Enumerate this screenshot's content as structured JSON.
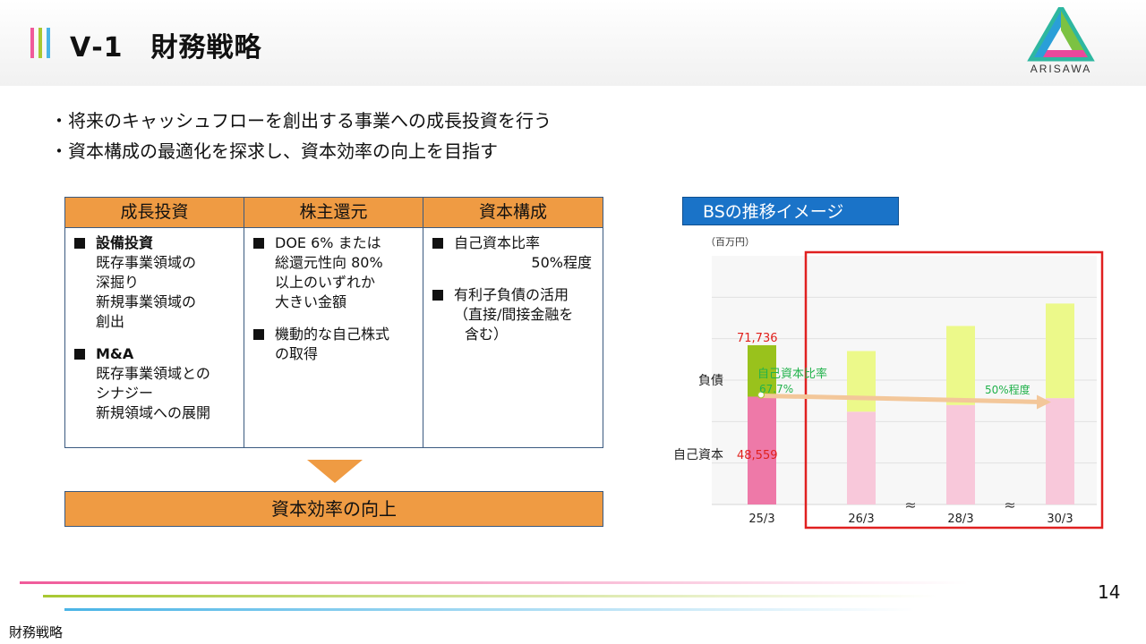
{
  "slide": {
    "title": "Ⅴ-1　財務戦略",
    "logo_text": "ARISAWA",
    "page_number": "14",
    "footer_label": "財務戦略",
    "title_bar_colors": [
      "#f05a9a",
      "#a8c832",
      "#4ab4e6"
    ]
  },
  "bullets": [
    "将来のキャッシュフローを創出する事業への成長投資を行う",
    "資本構成の最適化を探求し、資本効率の向上を目指す"
  ],
  "table": {
    "columns": [
      {
        "header": "成長投資",
        "items": [
          {
            "head": "設備投資",
            "subs": [
              "既存事業領域の",
              "深掘り",
              "新規事業領域の",
              "創出"
            ]
          },
          {
            "head": "M&A",
            "subs": [
              "既存事業領域との",
              "シナジー",
              "新規領域への展開"
            ]
          }
        ]
      },
      {
        "header": "株主還元",
        "items": [
          {
            "head": "DOE 6% または",
            "subs": [
              "総還元性向 80%",
              "以上のいずれか",
              "大きい金額"
            ]
          },
          {
            "head": "機動的な自己株式",
            "subs": [
              "の取得"
            ]
          }
        ]
      },
      {
        "header": "資本構成",
        "items": [
          {
            "head": "自己資本比率",
            "subs": [
              "50%程度"
            ]
          },
          {
            "head": "有利子負債の活用",
            "subs": [
              "（直接/間接金融を",
              "含む）"
            ]
          }
        ]
      }
    ],
    "result": "資本効率の向上"
  },
  "chart_title": "BSの推移イメージ",
  "chart_data": {
    "type": "bar",
    "unit_label": "（百万円）",
    "categories": [
      "25/3",
      "26/3",
      "28/3",
      "30/3"
    ],
    "series": [
      {
        "name": "自己資本",
        "values": [
          48559,
          41800,
          44800,
          47900
        ]
      },
      {
        "name": "負債",
        "values": [
          23177,
          27300,
          35600,
          42600
        ]
      }
    ],
    "stack": true,
    "ylim": [
      0,
      112000
    ],
    "grid": true,
    "break_marks_between": [
      "26/3-28/3",
      "28/3-30/3"
    ],
    "labels": {
      "total": "71,736",
      "equity": "48,559",
      "liability_axis": "負債",
      "equity_axis": "自己資本",
      "ratio_title": "自己資本比率",
      "ratio_value": "67.7%",
      "target": "50%程度",
      "break_glyph": "≈"
    },
    "colors": {
      "equity_actual": "#ee79a8",
      "liability_actual": "#99c21c",
      "equity_plan": "#f8c8da",
      "liability_plan": "#ecf98a",
      "highlight_frame": "#e02020",
      "arrow": "#f3c79a",
      "total_label": "#e0201c",
      "ratio_label": "#21b24b"
    }
  }
}
